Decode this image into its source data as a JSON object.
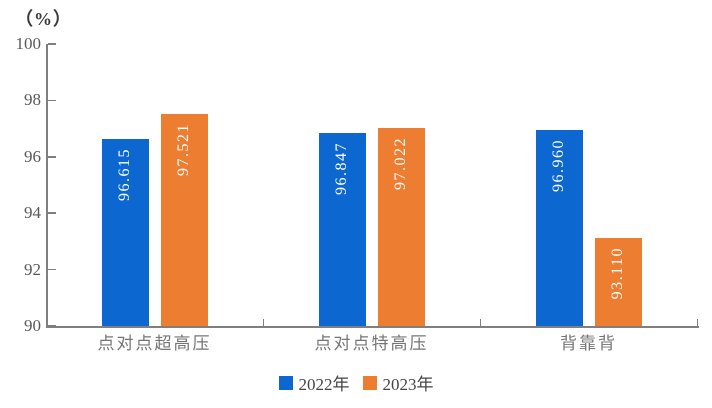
{
  "chart": {
    "unit_label": "（%）"
  },
  "chart_data": {
    "type": "bar",
    "title": "",
    "unit_label": "（%）",
    "categories": [
      "点对点超高压",
      "点对点特高压",
      "背靠背"
    ],
    "series": [
      {
        "name": "2022年",
        "color": "#0c68d0",
        "values": [
          96.615,
          96.847,
          96.96
        ],
        "labels": [
          "96.615",
          "96.847",
          "96.960"
        ]
      },
      {
        "name": "2023年",
        "color": "#ed7d31",
        "values": [
          97.521,
          97.022,
          93.11
        ],
        "labels": [
          "97.521",
          "97.022",
          "93.110"
        ]
      }
    ],
    "ylim": [
      90,
      100
    ],
    "yticks": [
      90,
      92,
      94,
      96,
      98,
      100
    ],
    "grid": false,
    "legend_position": "bottom",
    "colors": {
      "axis": "#7f7f7f",
      "y_tick_label": "#595959",
      "category_label": "#757575",
      "value_label": "#ffffff",
      "unit_label": "#3b3b3b",
      "legend_text": "#454545",
      "background": "#ffffff"
    }
  }
}
